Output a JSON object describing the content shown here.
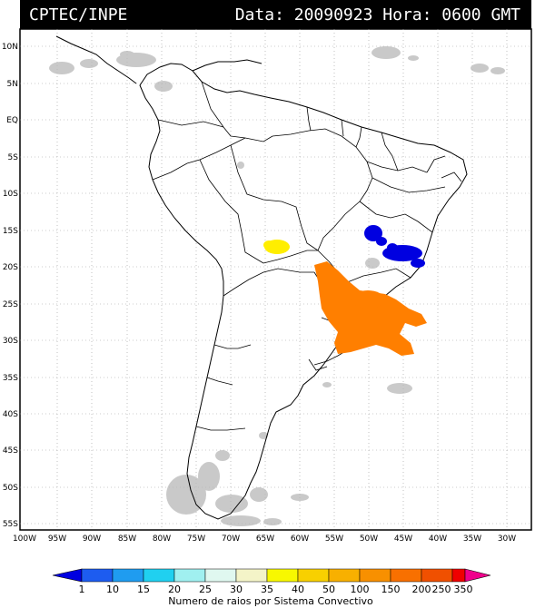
{
  "header": {
    "org": "CPTEC/INPE",
    "date_line": "Data: 20090923 Hora: 0600 GMT"
  },
  "map": {
    "lat_labels": [
      "10N",
      "5N",
      "EQ",
      "5S",
      "10S",
      "15S",
      "20S",
      "25S",
      "30S",
      "35S",
      "40S",
      "45S",
      "50S",
      "55S"
    ],
    "lon_labels": [
      "100W",
      "95W",
      "90W",
      "85W",
      "80W",
      "75W",
      "70W",
      "65W",
      "60W",
      "55W",
      "50W",
      "45W",
      "40W",
      "35W",
      "30W"
    ]
  },
  "legend": {
    "title": "Numero de raios por Sistema Convectivo",
    "ticks": [
      "1",
      "10",
      "15",
      "20",
      "25",
      "30",
      "35",
      "40",
      "50",
      "100",
      "150",
      "200",
      "250",
      "350"
    ],
    "colors": [
      "#0000e0",
      "#1d5cf0",
      "#1f9cf0",
      "#20d0f0",
      "#a0f0f0",
      "#f4f4c8",
      "#f8f800",
      "#f8d000",
      "#f8b000",
      "#f89000",
      "#f87000",
      "#f05000",
      "#f00000",
      "#f0008c"
    ]
  },
  "systems": [
    {
      "name": "Sistema convectivo amarelo (Bolivia)",
      "color": "#ffee00",
      "level": "35"
    },
    {
      "name": "Sistema convectivo azul (Minas Gerais)",
      "color": "#0000e0",
      "level": "1"
    },
    {
      "name": "Sistema convectivo laranja (Sul do Brasil)",
      "color": "#ff7f00",
      "level": "150"
    }
  ]
}
